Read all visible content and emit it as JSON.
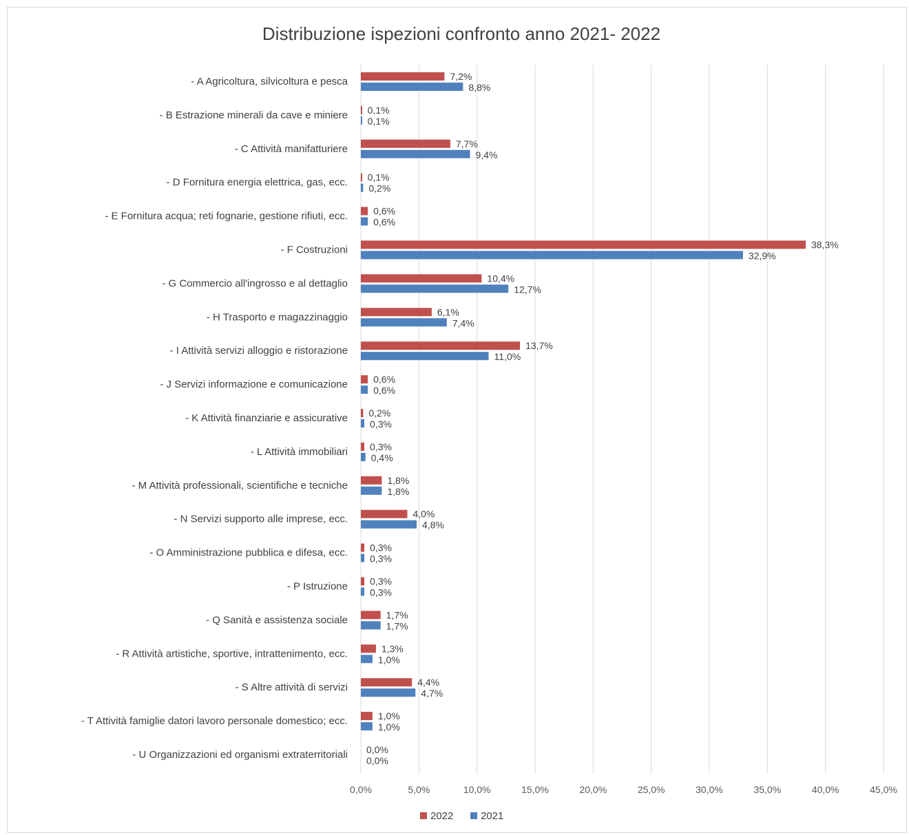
{
  "chart_data": {
    "type": "bar",
    "orientation": "horizontal",
    "title": "Distribuzione ispezioni confronto anno 2021- 2022",
    "categories": [
      "- A Agricoltura, silvicoltura e pesca",
      "- B Estrazione minerali da cave e miniere",
      "- C Attività manifatturiere",
      "- D Fornitura energia elettrica, gas, ecc.",
      "- E Fornitura acqua; reti fognarie,  gestione rifiuti, ecc.",
      "- F Costruzioni",
      "- G Commercio all'ingrosso e al dettaglio",
      "- H Trasporto e magazzinaggio",
      "- I Attività servizi alloggio e ristorazione",
      "- J Servizi informazione e comunicazione",
      "- K Attività finanziarie e assicurative",
      "- L Attività immobiliari",
      "- M Attività professionali, scientifiche e tecniche",
      "- N Servizi supporto alle imprese, ecc.",
      "- O Amministrazione pubblica e difesa, ecc.",
      "- P Istruzione",
      "- Q Sanità e assistenza sociale",
      "- R Attività artistiche, sportive, intrattenimento, ecc.",
      "- S Altre attività di servizi",
      "- T Attività famiglie datori lavoro personale domestico; ecc.",
      "- U Organizzazioni ed organismi extraterritoriali"
    ],
    "series": [
      {
        "name": "2022",
        "color": "#c0504d",
        "values": [
          7.2,
          0.1,
          7.7,
          0.1,
          0.6,
          38.3,
          10.4,
          6.1,
          13.7,
          0.6,
          0.2,
          0.3,
          1.8,
          4.0,
          0.3,
          0.3,
          1.7,
          1.3,
          4.4,
          1.0,
          0.0
        ],
        "labels": [
          "7,2%",
          "0,1%",
          "7,7%",
          "0,1%",
          "0,6%",
          "38,3%",
          "10,4%",
          "6,1%",
          "13,7%",
          "0,6%",
          "0,2%",
          "0,3%",
          "1,8%",
          "4,0%",
          "0,3%",
          "0,3%",
          "1,7%",
          "1,3%",
          "4,4%",
          "1,0%",
          "0,0%"
        ]
      },
      {
        "name": "2021",
        "color": "#4f81bd",
        "values": [
          8.8,
          0.1,
          9.4,
          0.2,
          0.6,
          32.9,
          12.7,
          7.4,
          11.0,
          0.6,
          0.3,
          0.4,
          1.8,
          4.8,
          0.3,
          0.3,
          1.7,
          1.0,
          4.7,
          1.0,
          0.0
        ],
        "labels": [
          "8,8%",
          "0,1%",
          "9,4%",
          "0,2%",
          "0,6%",
          "32,9%",
          "12,7%",
          "7,4%",
          "11,0%",
          "0,6%",
          "0,3%",
          "0,4%",
          "1,8%",
          "4,8%",
          "0,3%",
          "0,3%",
          "1,7%",
          "1,0%",
          "4,7%",
          "1,0%",
          "0,0%"
        ]
      }
    ],
    "xlim": [
      0,
      45
    ],
    "xticks": [
      0,
      5,
      10,
      15,
      20,
      25,
      30,
      35,
      40,
      45
    ],
    "xtick_labels": [
      "0,0%",
      "5,0%",
      "10,0%",
      "15,0%",
      "20,0%",
      "25,0%",
      "30,0%",
      "35,0%",
      "40,0%",
      "45,0%"
    ],
    "grid": true,
    "legend": "bottom"
  }
}
